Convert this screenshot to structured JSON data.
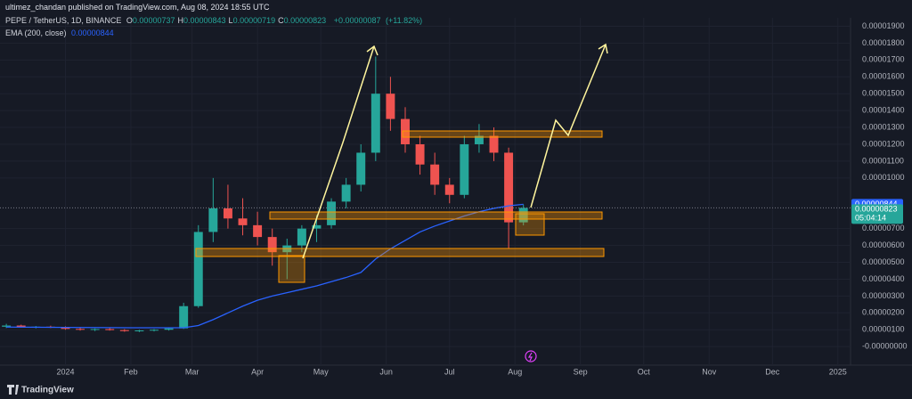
{
  "chart_data": {
    "type": "candlestick",
    "publisher": "ultimez_chandan published on TradingView.com, Aug 08, 2024 18:55 UTC",
    "symbol": "PEPE / TetherUS, 1D, BINANCE",
    "ohlc_legend": [
      {
        "label": "O",
        "value": 7.37e-06
      },
      {
        "label": "H",
        "value": 8.43e-06
      },
      {
        "label": "L",
        "value": 7.19e-06
      },
      {
        "label": "C",
        "value": 8.23e-06
      }
    ],
    "change": {
      "value": 8.7e-07,
      "label": "+0.00000087"
    },
    "change_percent": {
      "value": 11.82,
      "label": "(+11.82%)"
    },
    "ema_name": "EMA (200, close)",
    "ema_last": 8.44e-06,
    "last_close": 8.23e-06,
    "countdown": "05:04:14",
    "brand": "TradingView",
    "up_color": "#26a69a",
    "down_color": "#ef5350",
    "ema_color": "#2962ff",
    "grid": true,
    "xlim": [
      -31,
      372
    ],
    "ylim": [
      -1.1e-06,
      1.95e-05
    ],
    "xticks": [
      {
        "value": 0,
        "label": "2024"
      },
      {
        "value": 31,
        "label": "Feb"
      },
      {
        "value": 60,
        "label": "Mar"
      },
      {
        "value": 91,
        "label": "Apr"
      },
      {
        "value": 121,
        "label": "May"
      },
      {
        "value": 152,
        "label": "Jun"
      },
      {
        "value": 182,
        "label": "Jul"
      },
      {
        "value": 213,
        "label": "Aug"
      },
      {
        "value": 244,
        "label": "Sep"
      },
      {
        "value": 274,
        "label": "Oct"
      },
      {
        "value": 305,
        "label": "Nov"
      },
      {
        "value": 335,
        "label": "Dec"
      },
      {
        "value": 366,
        "label": "2025"
      }
    ],
    "yticks": [
      {
        "value": 0,
        "label": "-0.00000000"
      },
      {
        "value": 1e-06,
        "label": "0.00000100"
      },
      {
        "value": 2e-06,
        "label": "0.00000200"
      },
      {
        "value": 3e-06,
        "label": "0.00000300"
      },
      {
        "value": 4e-06,
        "label": "0.00000400"
      },
      {
        "value": 5e-06,
        "label": "0.00000500"
      },
      {
        "value": 6e-06,
        "label": "0.00000600"
      },
      {
        "value": 7e-06,
        "label": "0.00000700"
      },
      {
        "value": 1e-05,
        "label": "0.00001000"
      },
      {
        "value": 1.1e-05,
        "label": "0.00001100"
      },
      {
        "value": 1.2e-05,
        "label": "0.00001200"
      },
      {
        "value": 1.3e-05,
        "label": "0.00001300"
      },
      {
        "value": 1.4e-05,
        "label": "0.00001400"
      },
      {
        "value": 1.5e-05,
        "label": "0.00001500"
      },
      {
        "value": 1.6e-05,
        "label": "0.00001600"
      },
      {
        "value": 1.7e-05,
        "label": "0.00001700"
      },
      {
        "value": 1.8e-05,
        "label": "0.00001800"
      },
      {
        "value": 1.9e-05,
        "label": "0.00001900"
      }
    ],
    "x": [
      -28,
      -21,
      -14,
      -7,
      0,
      7,
      14,
      21,
      28,
      35,
      42,
      49,
      56,
      63,
      70,
      77,
      84,
      91,
      98,
      105,
      112,
      119,
      126,
      133,
      140,
      147,
      154,
      161,
      168,
      175,
      182,
      189,
      196,
      203,
      210,
      217
    ],
    "open": [
      1.18e-06,
      1.25e-06,
      1.15e-06,
      1.18e-06,
      1.13e-06,
      1.05e-06,
      1e-06,
      1.04e-06,
      9.8e-07,
      9.2e-07,
      9.6e-07,
      1e-06,
      1.08e-06,
      2.4e-06,
      6.8e-06,
      8.2e-06,
      7.6e-06,
      7.2e-06,
      6.5e-06,
      5.6e-06,
      6e-06,
      7e-06,
      7.2e-06,
      8.6e-06,
      9.6e-06,
      1.15e-05,
      1.5e-05,
      1.35e-05,
      1.2e-05,
      1.08e-05,
      9.6e-06,
      9e-06,
      1.2e-05,
      1.25e-05,
      1.15e-05,
      7.37e-06
    ],
    "high": [
      1.35e-06,
      1.3e-06,
      1.22e-06,
      1.24e-06,
      1.2e-06,
      1.12e-06,
      1.08e-06,
      1.1e-06,
      1.04e-06,
      1e-06,
      1.04e-06,
      1.12e-06,
      2.6e-06,
      7.2e-06,
      1e-05,
      9.6e-06,
      8.8e-06,
      8e-06,
      7e-06,
      6.4e-06,
      7.2e-06,
      7.8e-06,
      8.8e-06,
      1e-05,
      1.2e-05,
      1.72e-05,
      1.6e-05,
      1.42e-05,
      1.25e-05,
      1.15e-05,
      1e-05,
      1.25e-05,
      1.32e-05,
      1.3e-05,
      1.18e-05,
      8.43e-06
    ],
    "low": [
      1.1e-06,
      1.12e-06,
      1.08e-06,
      1.1e-06,
      1e-06,
      9.5e-07,
      9.2e-07,
      9.5e-07,
      8.8e-07,
      8.6e-07,
      9e-07,
      9.5e-07,
      1.05e-06,
      2.3e-06,
      6.2e-06,
      7e-06,
      6.6e-06,
      6e-06,
      4.8e-06,
      4e-06,
      5.6e-06,
      6.2e-06,
      7e-06,
      8.2e-06,
      9.2e-06,
      1.1e-05,
      1.28e-05,
      1.15e-05,
      1.02e-05,
      9e-06,
      8.5e-06,
      8.8e-06,
      1.15e-05,
      1.1e-05,
      5.8e-06,
      7.19e-06
    ],
    "close": [
      1.25e-06,
      1.15e-06,
      1.18e-06,
      1.13e-06,
      1.05e-06,
      1e-06,
      1.04e-06,
      9.8e-07,
      9.2e-07,
      9.6e-07,
      1e-06,
      1.08e-06,
      2.4e-06,
      6.8e-06,
      8.2e-06,
      7.6e-06,
      7.2e-06,
      6.5e-06,
      5.6e-06,
      6e-06,
      7e-06,
      7.2e-06,
      8.6e-06,
      9.6e-06,
      1.15e-05,
      1.5e-05,
      1.35e-05,
      1.2e-05,
      1.08e-05,
      9.6e-06,
      9e-06,
      1.2e-05,
      1.25e-05,
      1.15e-05,
      7.37e-06,
      8.23e-06
    ],
    "ema_x": [
      -28,
      0,
      30,
      56,
      63,
      70,
      77,
      84,
      91,
      98,
      105,
      112,
      119,
      126,
      133,
      140,
      147,
      154,
      161,
      168,
      175,
      182,
      189,
      196,
      203,
      210,
      217
    ],
    "ema": [
      1.16e-06,
      1.14e-06,
      1.12e-06,
      1.12e-06,
      1.25e-06,
      1.6e-06,
      2e-06,
      2.4e-06,
      2.75e-06,
      3e-06,
      3.2e-06,
      3.4e-06,
      3.6e-06,
      3.85e-06,
      4.1e-06,
      4.4e-06,
      5.2e-06,
      5.8e-06,
      6.3e-06,
      6.8e-06,
      7.15e-06,
      7.45e-06,
      7.75e-06,
      8e-06,
      8.2e-06,
      8.35e-06,
      8.44e-06
    ]
  }
}
